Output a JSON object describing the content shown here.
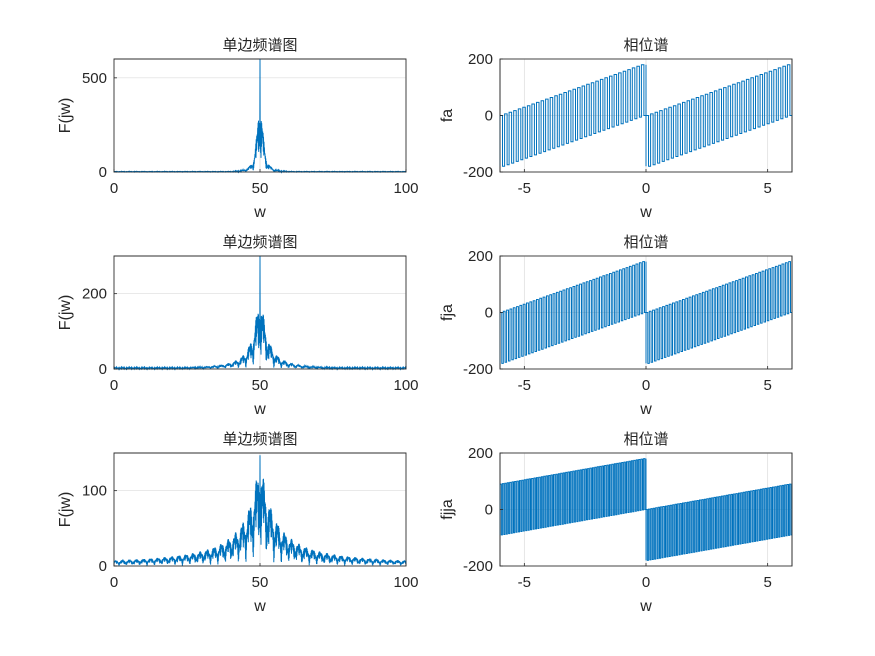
{
  "figure": {
    "background": "#ffffff",
    "series_color": "#0072BD"
  },
  "chart_data": [
    {
      "id": "mag1",
      "type": "line",
      "title": "单边频谱图",
      "xlabel": "w",
      "ylabel": "F(jw)",
      "xlim": [
        0,
        100
      ],
      "ylim": [
        0,
        600
      ],
      "xticks": [
        0,
        50,
        100
      ],
      "yticks": [
        0,
        500
      ],
      "grid": true,
      "series": [
        {
          "kind": "magnitude",
          "peak_x": 50,
          "peak_y": 600,
          "second_y": 380,
          "lobe_width": 1.2,
          "decay": 2.2,
          "floor": 3
        }
      ]
    },
    {
      "id": "phase1",
      "type": "line",
      "title": "相位谱",
      "xlabel": "w",
      "ylabel": "fa",
      "xlim": [
        -6,
        6
      ],
      "ylim": [
        -200,
        200
      ],
      "xticks": [
        -5,
        0,
        5
      ],
      "yticks": [
        -200,
        0,
        200
      ],
      "grid": true,
      "series": [
        {
          "kind": "phase",
          "y_top": 180,
          "y_bottom": -180,
          "left_start": -180,
          "left_end": 0,
          "right_start": 0,
          "right_end": 180,
          "pulses_per_side": 32
        }
      ]
    },
    {
      "id": "mag2",
      "type": "line",
      "title": "单边频谱图",
      "xlabel": "w",
      "ylabel": "F(jw)",
      "xlim": [
        0,
        100
      ],
      "ylim": [
        0,
        300
      ],
      "xticks": [
        0,
        50,
        100
      ],
      "yticks": [
        0,
        200
      ],
      "grid": true,
      "series": [
        {
          "kind": "magnitude",
          "peak_x": 50,
          "peak_y": 300,
          "second_y": 190,
          "lobe_width": 2.4,
          "decay": 1.6,
          "floor": 4
        }
      ]
    },
    {
      "id": "phase2",
      "type": "line",
      "title": "相位谱",
      "xlabel": "w",
      "ylabel": "fja",
      "xlim": [
        -6,
        6
      ],
      "ylim": [
        -200,
        200
      ],
      "xticks": [
        -5,
        0,
        5
      ],
      "yticks": [
        -200,
        0,
        200
      ],
      "grid": true,
      "series": [
        {
          "kind": "phase",
          "y_top": 180,
          "y_bottom": -180,
          "left_start": -180,
          "left_end": 0,
          "right_start": 0,
          "right_end": 180,
          "pulses_per_side": 44
        }
      ]
    },
    {
      "id": "mag3",
      "type": "line",
      "title": "单边频谱图",
      "xlabel": "w",
      "ylabel": "F(jw)",
      "xlim": [
        0,
        100
      ],
      "ylim": [
        0,
        150
      ],
      "xticks": [
        0,
        50,
        100
      ],
      "yticks": [
        0,
        100
      ],
      "grid": true,
      "series": [
        {
          "kind": "magnitude",
          "peak_x": 50,
          "peak_y": 147,
          "second_y": 140,
          "lobe_width": 4.5,
          "decay": 1.2,
          "floor": 4
        }
      ]
    },
    {
      "id": "phase3",
      "type": "line",
      "title": "相位谱",
      "xlabel": "w",
      "ylabel": "fjja",
      "xlim": [
        -6,
        6
      ],
      "ylim": [
        -200,
        200
      ],
      "xticks": [
        -5,
        0,
        5
      ],
      "yticks": [
        -200,
        0,
        200
      ],
      "grid": true,
      "series": [
        {
          "kind": "phase",
          "y_top": 180,
          "y_bottom": -180,
          "left_start": -90,
          "left_end": 0,
          "right_start": 0,
          "right_end": 90,
          "pulses_per_side": 60
        }
      ]
    }
  ]
}
